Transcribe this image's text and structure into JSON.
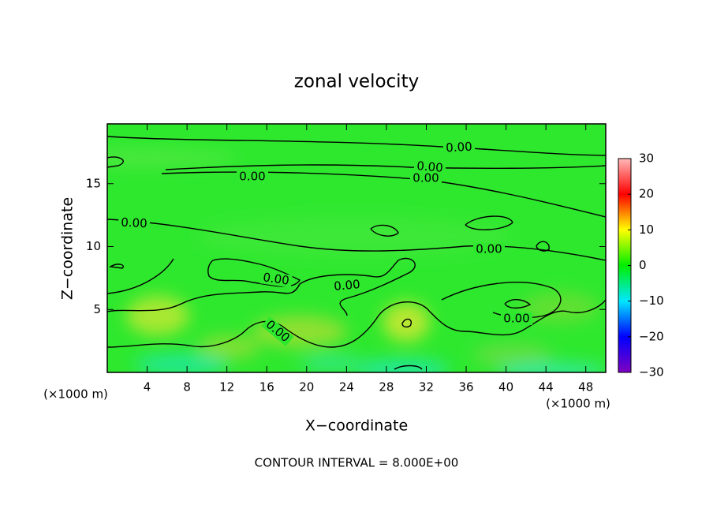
{
  "chart_data": {
    "type": "contour",
    "title": "zonal velocity",
    "x_label": "X−coordinate",
    "y_label": "Z−coordinate",
    "x_unit": "(×1000 m)",
    "annotation": "CONTOUR INTERVAL = 8.000E+00",
    "xlim": [
      0,
      50
    ],
    "xticks": [
      4,
      8,
      12,
      16,
      20,
      24,
      28,
      32,
      36,
      40,
      44,
      48
    ],
    "ylim": [
      0,
      19.75
    ],
    "yticks": [
      5,
      10,
      15
    ],
    "contour_levels": [
      {
        "value": 0,
        "label": "0.00"
      }
    ],
    "colorbar": {
      "lim": [
        -30,
        30
      ],
      "ticks": [
        {
          "value": -30,
          "label": "−30"
        },
        {
          "value": -20,
          "label": "−20"
        },
        {
          "value": -10,
          "label": "−10"
        },
        0,
        10,
        20,
        30
      ],
      "colors": [
        "#8000c0",
        "#0000ff",
        "#00e8ff",
        "#00ee00",
        "#ffff00",
        "#ff0000",
        "#ffb8b8"
      ]
    }
  }
}
